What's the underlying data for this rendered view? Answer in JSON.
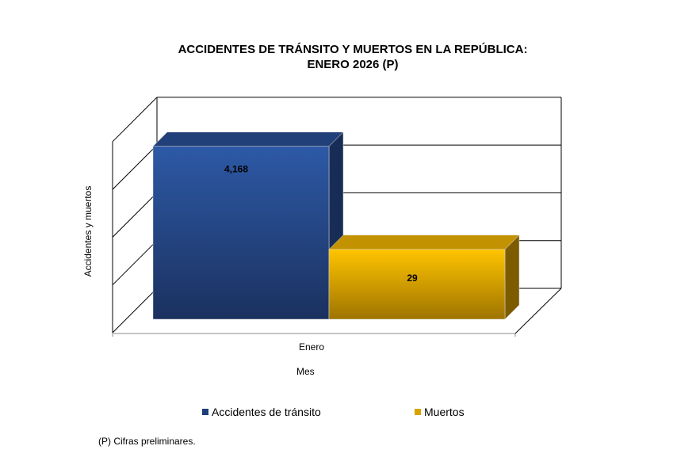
{
  "chart_data": {
    "type": "bar",
    "title": "ACCIDENTES DE TRÁNSITO Y MUERTOS EN LA REPÚBLICA:",
    "subtitle": "ENERO 2026 (P)",
    "xlabel": "Mes",
    "ylabel": "Accidentes y muertos",
    "categories": [
      "Enero"
    ],
    "y_scale": "log",
    "ylim": [
      1,
      10000
    ],
    "grid": true,
    "legend_placement": "bottom",
    "series": [
      {
        "name": "Accidentes de tránsito",
        "values": [
          4168
        ],
        "label": "4,168",
        "color": "#2b55a0"
      },
      {
        "name": "Muertos",
        "values": [
          29
        ],
        "label": "29",
        "color": "#f5b800"
      }
    ]
  },
  "footnote": "(P) Cifras  preliminares."
}
